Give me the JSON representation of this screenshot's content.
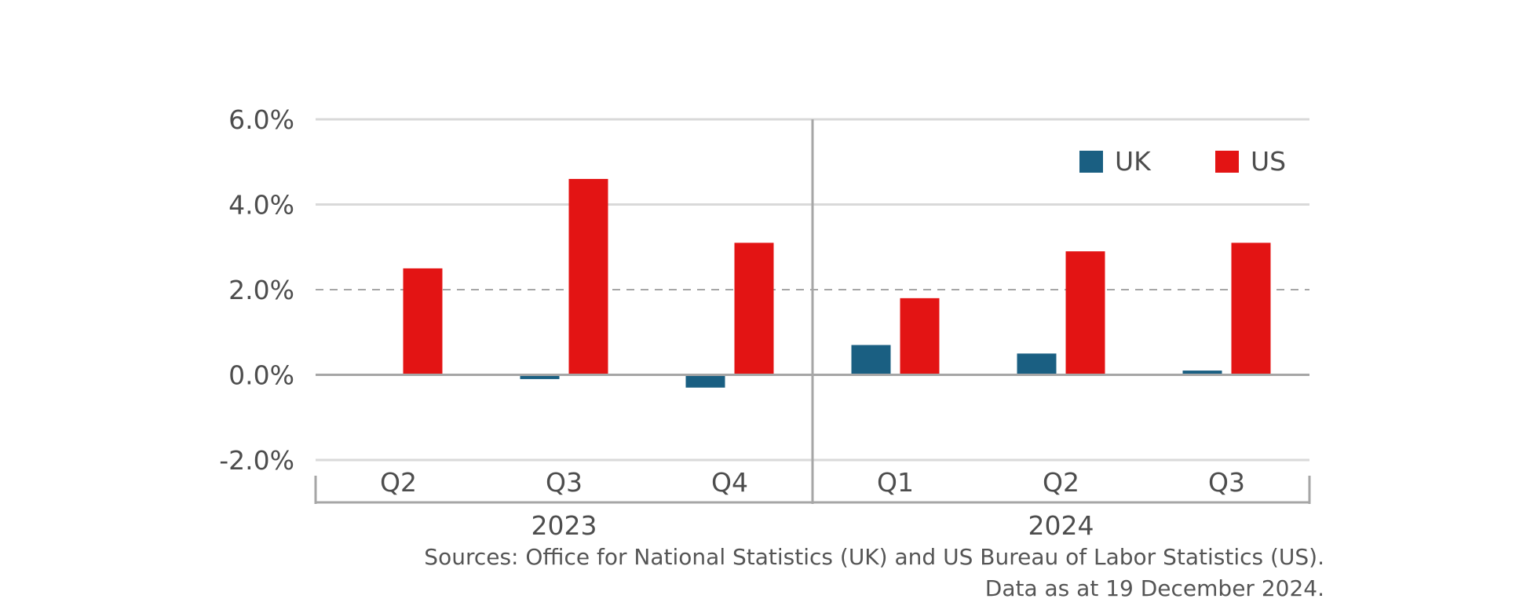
{
  "chart_data": {
    "type": "bar",
    "categories": [
      "Q2",
      "Q3",
      "Q4",
      "Q1",
      "Q2",
      "Q3"
    ],
    "groups": [
      {
        "label": "2023",
        "categories": [
          "Q2",
          "Q3",
          "Q4"
        ]
      },
      {
        "label": "2024",
        "categories": [
          "Q1",
          "Q2",
          "Q3"
        ]
      }
    ],
    "series": [
      {
        "name": "UK",
        "color": "#1a5f82",
        "values": [
          0.0,
          -0.1,
          -0.3,
          0.7,
          0.5,
          0.1
        ]
      },
      {
        "name": "US",
        "color": "#e31414",
        "values": [
          2.5,
          4.6,
          3.1,
          1.8,
          2.9,
          3.1
        ]
      }
    ],
    "ylim": [
      -2.0,
      6.0
    ],
    "yticks": [
      6.0,
      4.0,
      2.0,
      0.0,
      -2.0
    ],
    "ytick_labels": [
      "6.0%",
      "4.0%",
      "2.0%",
      "0.0%",
      "-2.0%"
    ],
    "reference_line": {
      "value": 2.0,
      "style": "dashed"
    },
    "grid": true,
    "legend_position": "top-right",
    "title": "",
    "xlabel": "",
    "ylabel": ""
  },
  "source_note": {
    "line1": "Sources: Office for National Statistics (UK) and US Bureau of Labor Statistics (US).",
    "line2": "Data as at 19 December 2024."
  }
}
